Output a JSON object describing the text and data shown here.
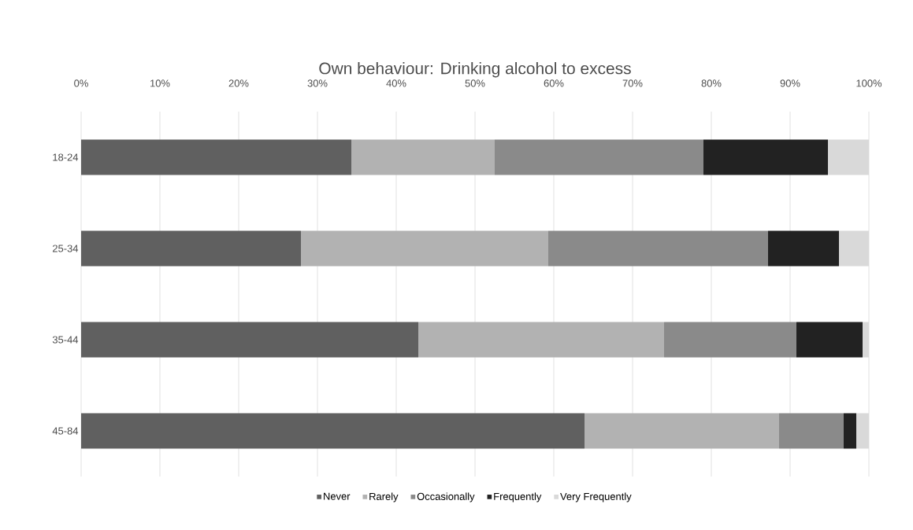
{
  "chart_data": {
    "type": "bar",
    "orientation": "horizontal",
    "stacked": true,
    "title": "Own behaviour: Drinking alcohol to excess",
    "categories": [
      "18-24",
      "25-34",
      "35-44",
      "45-84"
    ],
    "series": [
      {
        "name": "Never",
        "color": "#606060",
        "values": [
          34.3,
          27.9,
          42.8,
          63.9
        ]
      },
      {
        "name": "Rarely",
        "color": "#b2b2b2",
        "values": [
          18.2,
          31.4,
          31.2,
          24.7
        ]
      },
      {
        "name": "Occasionally",
        "color": "#8a8a8a",
        "values": [
          26.5,
          27.9,
          16.8,
          8.2
        ]
      },
      {
        "name": "Frequently",
        "color": "#222222",
        "values": [
          15.8,
          9.0,
          8.4,
          1.6
        ]
      },
      {
        "name": "Very Frequently",
        "color": "#d9d9d9",
        "values": [
          5.2,
          3.8,
          0.8,
          1.6
        ]
      }
    ],
    "xlim": [
      0,
      100
    ],
    "xticks": [
      {
        "value": 0,
        "label": "0%"
      },
      {
        "value": 10,
        "label": "10%"
      },
      {
        "value": 20,
        "label": "20%"
      },
      {
        "value": 30,
        "label": "30%"
      },
      {
        "value": 40,
        "label": "40%"
      },
      {
        "value": 50,
        "label": "50%"
      },
      {
        "value": 60,
        "label": "60%"
      },
      {
        "value": 70,
        "label": "70%"
      },
      {
        "value": 80,
        "label": "80%"
      },
      {
        "value": 90,
        "label": "90%"
      },
      {
        "value": 100,
        "label": "100%"
      }
    ],
    "grid": "x",
    "legend": "bottom"
  }
}
